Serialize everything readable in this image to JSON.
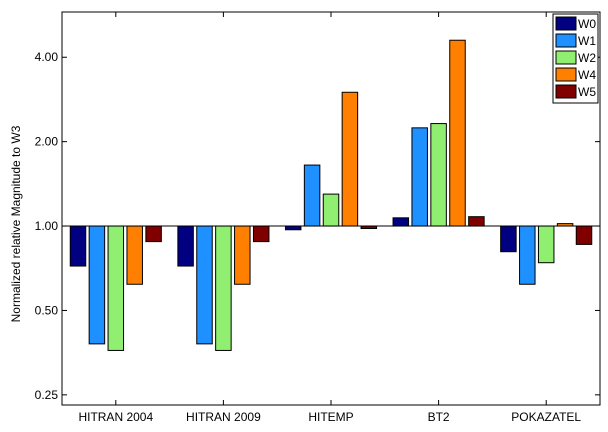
{
  "chart_data": {
    "type": "bar",
    "ylabel": "Normalized relative Magnitude to W3",
    "y_scale": "log2",
    "baseline": 1.0,
    "ylim": [
      0.23,
      5.8
    ],
    "y_ticks": [
      {
        "value": 0.25,
        "label": "0.25"
      },
      {
        "value": 0.5,
        "label": "0.50"
      },
      {
        "value": 1.0,
        "label": "1.00"
      },
      {
        "value": 2.0,
        "label": "2.00"
      },
      {
        "value": 4.0,
        "label": "4.00"
      }
    ],
    "categories": [
      "HITRAN 2004",
      "HITRAN 2009",
      "HITEMP",
      "BT2",
      "POKAZATEL"
    ],
    "series": [
      {
        "name": "W0",
        "color": "#000080",
        "values": [
          0.72,
          0.72,
          0.97,
          1.07,
          0.81
        ]
      },
      {
        "name": "W1",
        "color": "#1E90FF",
        "values": [
          0.38,
          0.38,
          1.65,
          2.24,
          0.62
        ]
      },
      {
        "name": "W2",
        "color": "#90EE70",
        "values": [
          0.36,
          0.36,
          1.3,
          2.32,
          0.74
        ]
      },
      {
        "name": "W4",
        "color": "#FF8000",
        "values": [
          0.62,
          0.62,
          3.0,
          4.6,
          1.02
        ]
      },
      {
        "name": "W5",
        "color": "#800000",
        "values": [
          0.88,
          0.88,
          0.98,
          1.08,
          0.86
        ]
      }
    ],
    "legend_position": "top-right",
    "grid": false
  }
}
